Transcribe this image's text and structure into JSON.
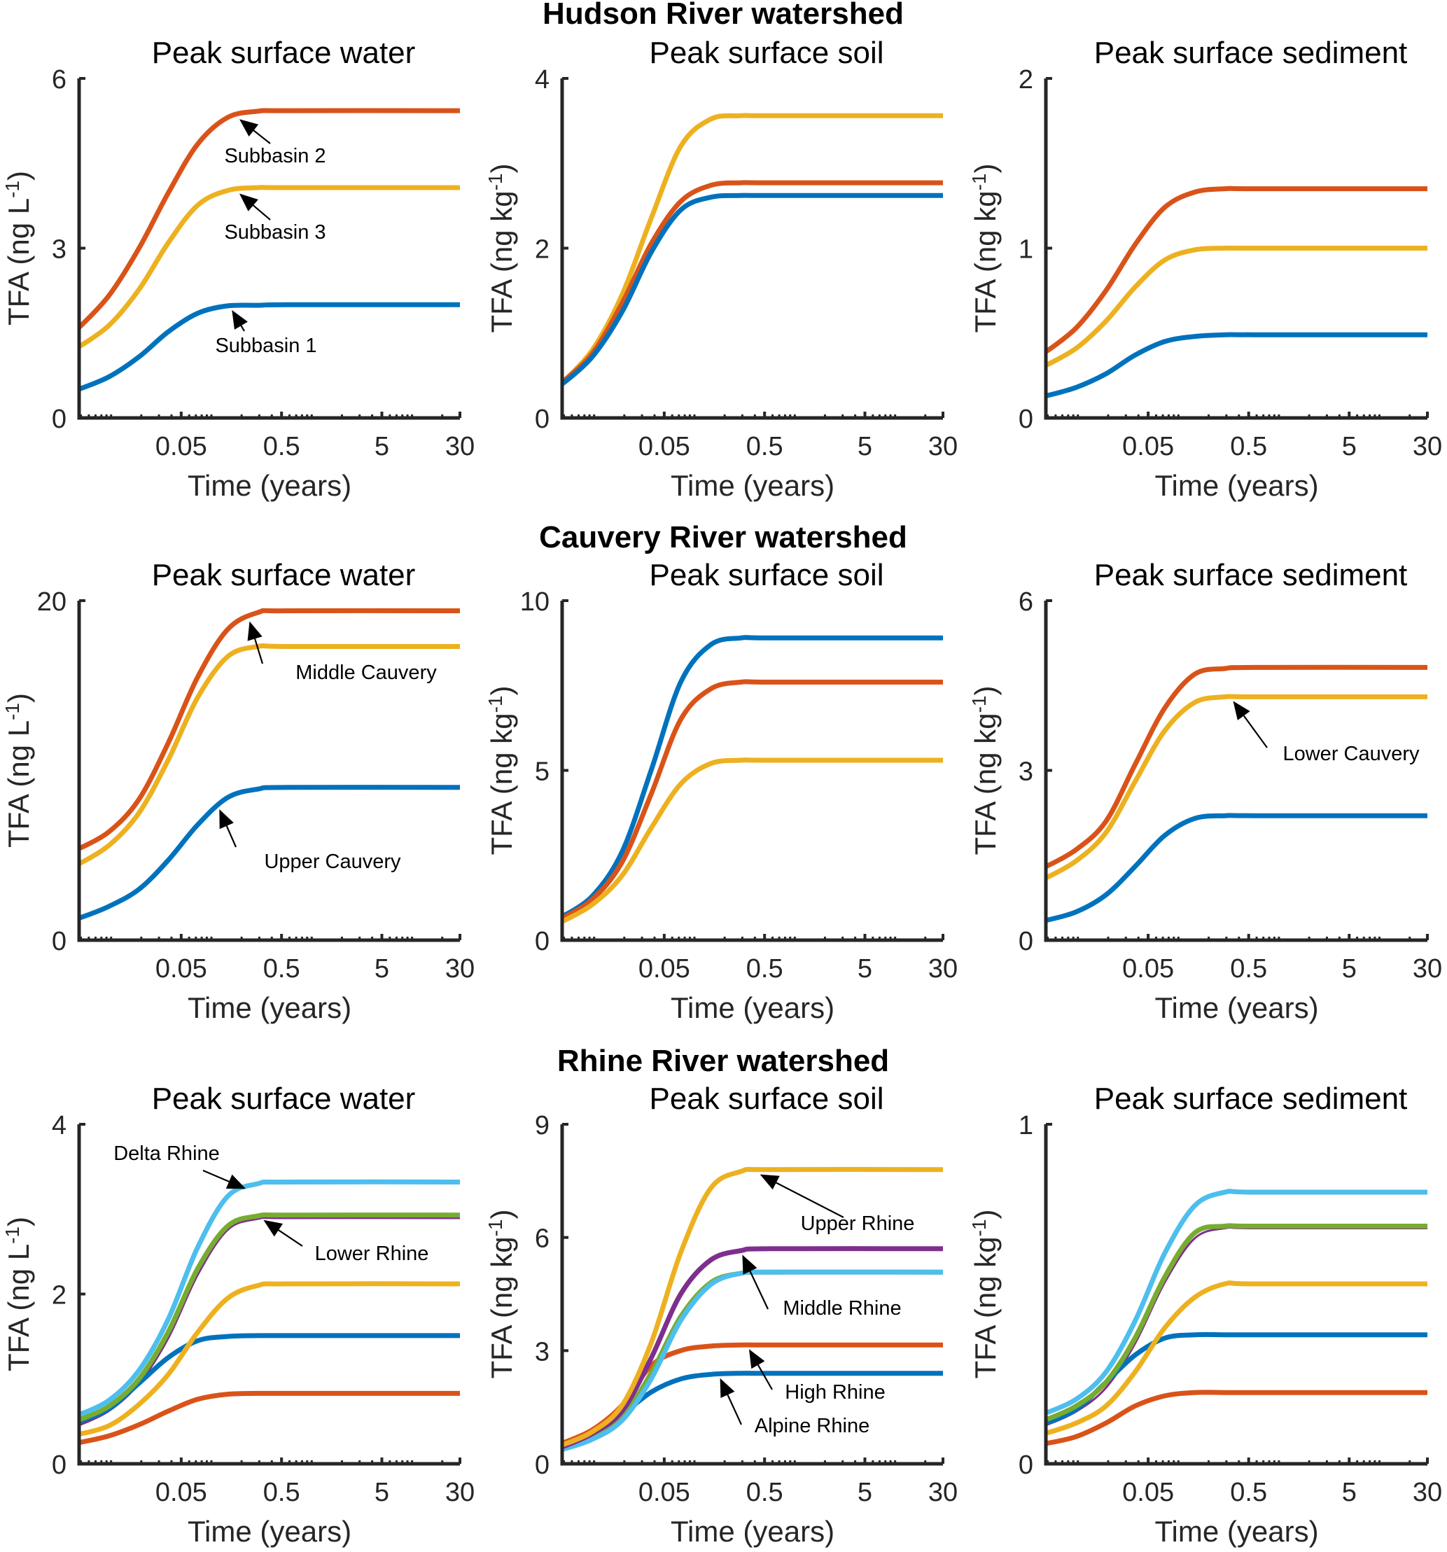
{
  "figure": {
    "colors": {
      "blue": "#0072BD",
      "red": "#D95319",
      "yellow": "#EDB120",
      "purple": "#7E2F8E",
      "green": "#77AC30",
      "lightblue": "#4DBEEE",
      "axis": "#262626"
    }
  },
  "chart_data": [
    {
      "type": "line",
      "section": "Hudson River watershed",
      "title": "Peak surface water",
      "xlabel": "Time (years)",
      "ylabel": "TFA (ng L-1)",
      "ylabel_base": "TFA (ng L",
      "ylabel_sup": "-1",
      "ylabel_close": ")",
      "xscale": "log",
      "xlim": [
        0.0048,
        30
      ],
      "ylim": [
        0,
        6
      ],
      "xticks": [
        "0.05",
        "0.5",
        "5",
        "30"
      ],
      "yticks": [
        "0",
        "3",
        "6"
      ],
      "grid": false,
      "x": [
        0.0048,
        0.0096,
        0.019,
        0.037,
        0.073,
        0.145,
        0.29,
        0.57,
        30
      ],
      "series": [
        {
          "name": "Subbasin 2",
          "color": "red",
          "values": [
            1.6,
            2.17,
            3.0,
            3.97,
            4.84,
            5.31,
            5.42,
            5.43,
            5.43
          ]
        },
        {
          "name": "Subbasin 3",
          "color": "yellow",
          "values": [
            1.26,
            1.64,
            2.27,
            3.09,
            3.76,
            4.02,
            4.07,
            4.07,
            4.07
          ]
        },
        {
          "name": "Subbasin 1",
          "color": "blue",
          "values": [
            0.51,
            0.73,
            1.08,
            1.52,
            1.85,
            1.98,
            1.99,
            2.0,
            2.0
          ]
        }
      ],
      "annotations": [
        {
          "text": "Subbasin 2",
          "series": "Subbasin 2"
        },
        {
          "text": "Subbasin 3",
          "series": "Subbasin 3"
        },
        {
          "text": "Subbasin 1",
          "series": "Subbasin 1"
        }
      ]
    },
    {
      "type": "line",
      "section": "Hudson River watershed",
      "title": "Peak surface soil",
      "xlabel": "Time (years)",
      "ylabel": "TFA (ng kg-1)",
      "ylabel_base": "TFA (ng kg",
      "ylabel_sup": "-1",
      "ylabel_close": ")",
      "xscale": "log",
      "xlim": [
        0.0048,
        30
      ],
      "ylim": [
        0,
        4
      ],
      "xticks": [
        "0.05",
        "0.5",
        "5",
        "30"
      ],
      "yticks": [
        "0",
        "2",
        "4"
      ],
      "grid": false,
      "x": [
        0.0048,
        0.0096,
        0.019,
        0.037,
        0.073,
        0.145,
        0.29,
        0.57,
        30
      ],
      "series": [
        {
          "name": "Subbasin 3",
          "color": "yellow",
          "values": [
            0.42,
            0.8,
            1.45,
            2.35,
            3.2,
            3.52,
            3.56,
            3.56,
            3.56
          ]
        },
        {
          "name": "Subbasin 2",
          "color": "red",
          "values": [
            0.42,
            0.76,
            1.35,
            2.05,
            2.55,
            2.74,
            2.77,
            2.77,
            2.77
          ]
        },
        {
          "name": "Subbasin 1",
          "color": "blue",
          "values": [
            0.4,
            0.72,
            1.25,
            1.95,
            2.45,
            2.6,
            2.62,
            2.62,
            2.62
          ]
        }
      ],
      "annotations": []
    },
    {
      "type": "line",
      "section": "Hudson River watershed",
      "title": "Peak surface sediment",
      "xlabel": "Time (years)",
      "ylabel": "TFA (ng kg-1)",
      "ylabel_base": "TFA (ng kg",
      "ylabel_sup": "-1",
      "ylabel_close": ")",
      "xscale": "log",
      "xlim": [
        0.0048,
        30
      ],
      "ylim": [
        0,
        2
      ],
      "xticks": [
        "0.05",
        "0.5",
        "5",
        "30"
      ],
      "yticks": [
        "0",
        "1",
        "2"
      ],
      "grid": false,
      "x": [
        0.0048,
        0.0096,
        0.019,
        0.037,
        0.073,
        0.145,
        0.29,
        0.57,
        30
      ],
      "series": [
        {
          "name": "Subbasin 2",
          "color": "red",
          "values": [
            0.39,
            0.53,
            0.75,
            1.02,
            1.24,
            1.33,
            1.35,
            1.35,
            1.35
          ]
        },
        {
          "name": "Subbasin 3",
          "color": "yellow",
          "values": [
            0.31,
            0.41,
            0.57,
            0.77,
            0.93,
            0.99,
            1.0,
            1.0,
            1.0
          ]
        },
        {
          "name": "Subbasin 1",
          "color": "blue",
          "values": [
            0.13,
            0.18,
            0.26,
            0.37,
            0.45,
            0.48,
            0.49,
            0.49,
            0.49
          ]
        }
      ],
      "annotations": []
    },
    {
      "type": "line",
      "section": "Cauvery River watershed",
      "title": "Peak surface water",
      "xlabel": "Time (years)",
      "ylabel": "TFA (ng L-1)",
      "ylabel_base": "TFA (ng L",
      "ylabel_sup": "-1",
      "ylabel_close": ")",
      "xscale": "log",
      "xlim": [
        0.0048,
        30
      ],
      "ylim": [
        0,
        20
      ],
      "xticks": [
        "0.05",
        "0.5",
        "5",
        "30"
      ],
      "yticks": [
        "0",
        "20"
      ],
      "grid": false,
      "x": [
        0.0048,
        0.0096,
        0.019,
        0.037,
        0.073,
        0.145,
        0.29,
        0.57,
        30
      ],
      "series": [
        {
          "name": "Middle Cauvery",
          "color": "red",
          "values": [
            5.4,
            6.4,
            8.3,
            11.6,
            15.5,
            18.3,
            19.3,
            19.4,
            19.4
          ]
        },
        {
          "name": "Lower Cauvery",
          "color": "yellow",
          "values": [
            4.5,
            5.6,
            7.5,
            10.6,
            14.3,
            16.7,
            17.3,
            17.3,
            17.3
          ]
        },
        {
          "name": "Upper Cauvery",
          "color": "blue",
          "values": [
            1.3,
            2.0,
            3.0,
            4.7,
            6.8,
            8.4,
            8.9,
            9.0,
            9.0
          ]
        }
      ],
      "annotations": [
        {
          "text": "Middle Cauvery",
          "series": "Middle Cauvery"
        },
        {
          "text": "Upper Cauvery",
          "series": "Upper Cauvery"
        }
      ]
    },
    {
      "type": "line",
      "section": "Cauvery River watershed",
      "title": "Peak surface soil",
      "xlabel": "Time (years)",
      "ylabel": "TFA (ng kg-1)",
      "ylabel_base": "TFA (ng kg",
      "ylabel_sup": "-1",
      "ylabel_close": ")",
      "xscale": "log",
      "xlim": [
        0.0048,
        30
      ],
      "ylim": [
        0,
        10
      ],
      "xticks": [
        "0.05",
        "0.5",
        "5",
        "30"
      ],
      "yticks": [
        "0",
        "5",
        "10"
      ],
      "grid": false,
      "x": [
        0.0048,
        0.0096,
        0.019,
        0.037,
        0.073,
        0.145,
        0.29,
        0.57,
        30
      ],
      "series": [
        {
          "name": "Upper Cauvery",
          "color": "blue",
          "values": [
            0.7,
            1.3,
            2.6,
            5.0,
            7.6,
            8.7,
            8.9,
            8.9,
            8.9
          ]
        },
        {
          "name": "Middle Cauvery",
          "color": "red",
          "values": [
            0.65,
            1.2,
            2.3,
            4.3,
            6.5,
            7.4,
            7.6,
            7.6,
            7.6
          ]
        },
        {
          "name": "Lower Cauvery",
          "color": "yellow",
          "values": [
            0.55,
            1.05,
            1.9,
            3.3,
            4.6,
            5.2,
            5.3,
            5.3,
            5.3
          ]
        }
      ],
      "annotations": []
    },
    {
      "type": "line",
      "section": "Cauvery River watershed",
      "title": "Peak surface sediment",
      "xlabel": "Time (years)",
      "ylabel": "TFA (ng kg-1)",
      "ylabel_base": "TFA (ng kg",
      "ylabel_sup": "-1",
      "ylabel_close": ")",
      "xscale": "log",
      "xlim": [
        0.0048,
        30
      ],
      "ylim": [
        0,
        6
      ],
      "xticks": [
        "0.05",
        "0.5",
        "5",
        "30"
      ],
      "yticks": [
        "0",
        "3",
        "6"
      ],
      "grid": false,
      "x": [
        0.0048,
        0.0096,
        0.019,
        0.037,
        0.073,
        0.145,
        0.29,
        0.57,
        30
      ],
      "series": [
        {
          "name": "Middle Cauvery",
          "color": "red",
          "values": [
            1.3,
            1.6,
            2.1,
            3.1,
            4.1,
            4.7,
            4.8,
            4.82,
            4.82
          ]
        },
        {
          "name": "Lower Cauvery",
          "color": "yellow",
          "values": [
            1.1,
            1.4,
            1.9,
            2.8,
            3.7,
            4.2,
            4.3,
            4.3,
            4.3
          ]
        },
        {
          "name": "Upper Cauvery",
          "color": "blue",
          "values": [
            0.35,
            0.5,
            0.8,
            1.3,
            1.85,
            2.15,
            2.2,
            2.2,
            2.2
          ]
        }
      ],
      "annotations": [
        {
          "text": "Lower Cauvery",
          "series": "Lower Cauvery"
        }
      ]
    },
    {
      "type": "line",
      "section": "Rhine River watershed",
      "title": "Peak surface water",
      "xlabel": "Time (years)",
      "ylabel": "TFA (ng L-1)",
      "ylabel_base": "TFA (ng L",
      "ylabel_sup": "-1",
      "ylabel_close": ")",
      "xscale": "log",
      "xlim": [
        0.0048,
        30
      ],
      "ylim": [
        0,
        4
      ],
      "xticks": [
        "0.05",
        "0.5",
        "5",
        "30"
      ],
      "yticks": [
        "0",
        "2",
        "4"
      ],
      "grid": false,
      "x": [
        0.0048,
        0.0096,
        0.019,
        0.037,
        0.073,
        0.145,
        0.29,
        0.57,
        30
      ],
      "series": [
        {
          "name": "Middle Rhine",
          "color": "purple",
          "thin": true,
          "values": [
            0.48,
            0.65,
            0.97,
            1.5,
            2.25,
            2.78,
            2.91,
            2.92,
            2.92
          ]
        },
        {
          "name": "Alpine Rhine",
          "color": "blue",
          "values": [
            0.5,
            0.65,
            0.95,
            1.25,
            1.45,
            1.5,
            1.51,
            1.51,
            1.51
          ]
        },
        {
          "name": "High Rhine",
          "color": "red",
          "values": [
            0.25,
            0.33,
            0.46,
            0.62,
            0.76,
            0.82,
            0.83,
            0.83,
            0.83
          ]
        },
        {
          "name": "Upper Rhine",
          "color": "yellow",
          "values": [
            0.35,
            0.45,
            0.7,
            1.05,
            1.55,
            1.95,
            2.1,
            2.12,
            2.12
          ]
        },
        {
          "name": "Lower Rhine",
          "color": "green",
          "values": [
            0.52,
            0.68,
            1.0,
            1.55,
            2.3,
            2.8,
            2.92,
            2.93,
            2.93
          ]
        },
        {
          "name": "Delta Rhine",
          "color": "lightblue",
          "values": [
            0.58,
            0.75,
            1.1,
            1.7,
            2.55,
            3.15,
            3.3,
            3.32,
            3.32
          ]
        }
      ],
      "annotations": [
        {
          "text": "Delta Rhine",
          "series": "Delta Rhine"
        },
        {
          "text": "Lower Rhine",
          "series": "Lower Rhine"
        }
      ]
    },
    {
      "type": "line",
      "section": "Rhine River watershed",
      "title": "Peak surface soil",
      "xlabel": "Time (years)",
      "ylabel": "TFA (ng kg-1)",
      "ylabel_base": "TFA (ng kg",
      "ylabel_sup": "-1",
      "ylabel_close": ")",
      "xscale": "log",
      "xlim": [
        0.0048,
        30
      ],
      "ylim": [
        0,
        9
      ],
      "xticks": [
        "0.05",
        "0.5",
        "5",
        "30"
      ],
      "yticks": [
        "0",
        "3",
        "6",
        "9"
      ],
      "grid": false,
      "x": [
        0.0048,
        0.0096,
        0.019,
        0.037,
        0.073,
        0.145,
        0.29,
        0.57,
        30
      ],
      "series": [
        {
          "name": "High Rhine",
          "color": "red",
          "values": [
            0.55,
            0.9,
            1.55,
            2.6,
            3.0,
            3.12,
            3.15,
            3.15,
            3.15
          ]
        },
        {
          "name": "Alpine Rhine",
          "color": "blue",
          "values": [
            0.45,
            0.75,
            1.3,
            1.9,
            2.25,
            2.37,
            2.4,
            2.4,
            2.4
          ]
        },
        {
          "name": "Lower Rhine",
          "color": "green",
          "values": [
            0.42,
            0.72,
            1.25,
            2.4,
            3.9,
            4.8,
            5.05,
            5.08,
            5.08
          ]
        },
        {
          "name": "Delta Rhine",
          "color": "lightblue",
          "values": [
            0.38,
            0.65,
            1.15,
            2.25,
            3.8,
            4.75,
            5.05,
            5.08,
            5.08
          ]
        },
        {
          "name": "Middle Rhine",
          "color": "purple",
          "values": [
            0.45,
            0.8,
            1.4,
            2.8,
            4.5,
            5.4,
            5.65,
            5.7,
            5.7
          ]
        },
        {
          "name": "Upper Rhine",
          "color": "yellow",
          "values": [
            0.5,
            0.85,
            1.55,
            3.2,
            5.6,
            7.3,
            7.75,
            7.8,
            7.8
          ]
        }
      ],
      "annotations": [
        {
          "text": "Upper Rhine",
          "series": "Upper Rhine"
        },
        {
          "text": "Middle Rhine",
          "series": "Middle Rhine"
        },
        {
          "text": "High Rhine",
          "series": "High Rhine"
        },
        {
          "text": "Alpine Rhine",
          "series": "Alpine Rhine"
        }
      ]
    },
    {
      "type": "line",
      "section": "Rhine River watershed",
      "title": "Peak surface sediment",
      "xlabel": "Time (years)",
      "ylabel": "TFA (ng kg-1)",
      "ylabel_base": "TFA (ng kg",
      "ylabel_sup": "-1",
      "ylabel_close": ")",
      "xscale": "log",
      "xlim": [
        0.0048,
        30
      ],
      "ylim": [
        0,
        1
      ],
      "xticks": [
        "0.05",
        "0.5",
        "5",
        "30"
      ],
      "yticks": [
        "0",
        "1"
      ],
      "grid": false,
      "x": [
        0.0048,
        0.0096,
        0.019,
        0.037,
        0.073,
        0.145,
        0.29,
        0.57,
        30
      ],
      "series": [
        {
          "name": "Middle Rhine",
          "color": "purple",
          "thin": true,
          "values": [
            0.12,
            0.16,
            0.23,
            0.36,
            0.54,
            0.67,
            0.7,
            0.7,
            0.7
          ]
        },
        {
          "name": "Alpine Rhine",
          "color": "blue",
          "values": [
            0.12,
            0.16,
            0.24,
            0.32,
            0.37,
            0.38,
            0.38,
            0.38,
            0.38
          ]
        },
        {
          "name": "High Rhine",
          "color": "red",
          "values": [
            0.06,
            0.08,
            0.12,
            0.17,
            0.2,
            0.21,
            0.21,
            0.21,
            0.21
          ]
        },
        {
          "name": "Upper Rhine",
          "color": "yellow",
          "values": [
            0.09,
            0.12,
            0.17,
            0.27,
            0.4,
            0.49,
            0.53,
            0.53,
            0.53
          ]
        },
        {
          "name": "Lower Rhine",
          "color": "green",
          "values": [
            0.13,
            0.17,
            0.24,
            0.37,
            0.55,
            0.68,
            0.7,
            0.7,
            0.7
          ]
        },
        {
          "name": "Delta Rhine",
          "color": "lightblue",
          "values": [
            0.15,
            0.19,
            0.27,
            0.42,
            0.62,
            0.76,
            0.8,
            0.8,
            0.8
          ]
        }
      ],
      "annotations": []
    }
  ],
  "sections": [
    {
      "title": "Hudson River watershed"
    },
    {
      "title": "Cauvery River watershed"
    },
    {
      "title": "Rhine River watershed"
    }
  ]
}
